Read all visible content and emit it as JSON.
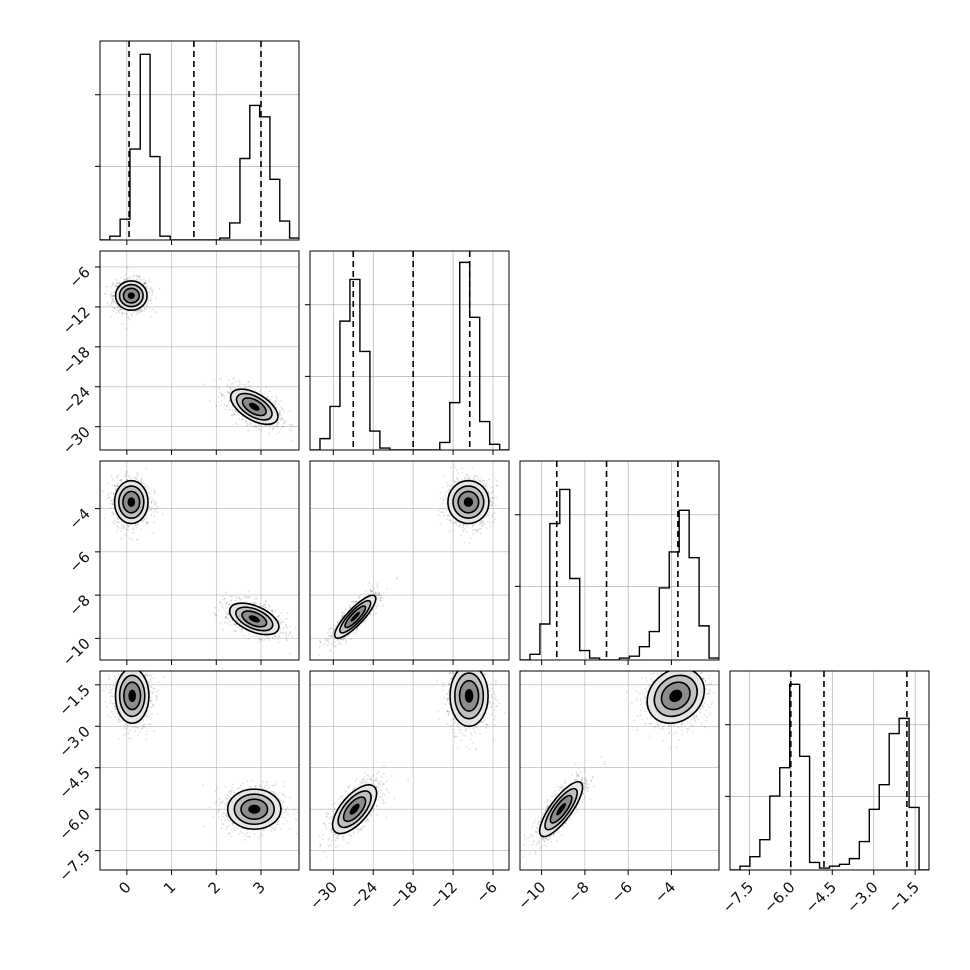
{
  "colors": {
    "background": "#ffffff",
    "axis": "#000000",
    "grid": "#b0b0b0",
    "hist": "#000000",
    "quantile_line": "#000000",
    "scatter_points": "#000000",
    "contour_fill_levels": [
      "#e6e6e6",
      "#bfbfbf",
      "#8c8c8c",
      "#000000"
    ]
  },
  "chart_data": {
    "type": "corner",
    "grid": true,
    "n_params": 4,
    "params": [
      {
        "name": "",
        "range": [
          -0.6,
          3.85
        ],
        "ticks": [
          0,
          1,
          2,
          3
        ],
        "tick_labels": [
          "0",
          "1",
          "2",
          "3"
        ],
        "quantiles": [
          0.05,
          1.5,
          3.0
        ]
      },
      {
        "name": "",
        "range": [
          -33.5,
          -3.6
        ],
        "ticks": [
          -30,
          -24,
          -18,
          -12,
          -6
        ],
        "tick_labels": [
          "−30",
          "−24",
          "−18",
          "−12",
          "−6"
        ],
        "quantiles": [
          -27.0,
          -18.0,
          -9.5
        ]
      },
      {
        "name": "",
        "range": [
          -11.0,
          -1.8
        ],
        "ticks": [
          -10,
          -8,
          -6,
          -4
        ],
        "tick_labels": [
          "−10",
          "−8",
          "−6",
          "−4"
        ],
        "quantiles": [
          -9.3,
          -7.0,
          -3.7
        ]
      },
      {
        "name": "",
        "range": [
          -8.2,
          -1.0
        ],
        "ticks": [
          -7.5,
          -6.0,
          -4.5,
          -3.0,
          -1.5
        ],
        "tick_labels": [
          "−7.5",
          "−6.0",
          "−4.5",
          "−3.0",
          "−1.5"
        ],
        "quantiles": [
          -6.0,
          -4.8,
          -1.8
        ]
      }
    ],
    "histograms": [
      {
        "param": 0,
        "bins": [
          -0.6,
          -0.38,
          -0.15,
          0.07,
          0.3,
          0.52,
          0.74,
          0.97,
          1.19,
          1.41,
          1.63,
          1.86,
          2.08,
          2.3,
          2.53,
          2.75,
          2.97,
          3.2,
          3.42,
          3.64,
          3.86
        ],
        "counts": [
          0,
          0.02,
          0.11,
          0.48,
          0.98,
          0.44,
          0.02,
          0,
          0,
          0,
          0,
          0,
          0.01,
          0.09,
          0.43,
          0.71,
          0.65,
          0.32,
          0.1,
          0.01
        ]
      },
      {
        "param": 1,
        "bins": [
          -33.5,
          -32.0,
          -30.5,
          -29.0,
          -27.5,
          -26.0,
          -24.5,
          -23.0,
          -21.5,
          -20.0,
          -18.5,
          -17.0,
          -15.5,
          -14.0,
          -12.5,
          -11.0,
          -9.5,
          -8.0,
          -6.5,
          -5.0,
          -3.5
        ],
        "counts": [
          0,
          0.06,
          0.23,
          0.68,
          0.9,
          0.52,
          0.1,
          0.01,
          0,
          0,
          0,
          0,
          0,
          0.04,
          0.25,
          0.99,
          0.7,
          0.15,
          0.03,
          0
        ]
      },
      {
        "param": 2,
        "bins": [
          -11.0,
          -10.54,
          -10.08,
          -9.62,
          -9.16,
          -8.7,
          -8.24,
          -7.78,
          -7.32,
          -6.86,
          -6.4,
          -5.94,
          -5.48,
          -5.02,
          -4.56,
          -4.1,
          -3.64,
          -3.18,
          -2.72,
          -2.26,
          -1.8
        ],
        "counts": [
          0,
          0.03,
          0.19,
          0.72,
          0.9,
          0.43,
          0.05,
          0.01,
          0,
          0,
          0.01,
          0.02,
          0.07,
          0.15,
          0.38,
          0.57,
          0.79,
          0.54,
          0.18,
          0.01
        ]
      },
      {
        "param": 3,
        "bins": [
          -8.2,
          -7.84,
          -7.48,
          -7.12,
          -6.76,
          -6.4,
          -6.04,
          -5.68,
          -5.32,
          -4.96,
          -4.6,
          -4.24,
          -3.88,
          -3.52,
          -3.16,
          -2.8,
          -2.44,
          -2.08,
          -1.72,
          -1.36,
          -1.0
        ],
        "counts": [
          0,
          0.02,
          0.07,
          0.16,
          0.39,
          0.54,
          0.98,
          0.6,
          0.04,
          0.01,
          0.02,
          0.03,
          0.06,
          0.15,
          0.32,
          0.45,
          0.72,
          0.8,
          0.33,
          0.0
        ]
      }
    ],
    "pairs": [
      {
        "x": 0,
        "y": 1,
        "clusters": [
          {
            "cx": 0.1,
            "cy": -10.3,
            "sx": 0.16,
            "sy": 1.0,
            "rho": 0.0
          },
          {
            "cx": 2.85,
            "cy": -27.0,
            "sx": 0.24,
            "sy": 1.2,
            "rho": -0.55
          }
        ]
      },
      {
        "x": 0,
        "y": 2,
        "clusters": [
          {
            "cx": 0.1,
            "cy": -3.7,
            "sx": 0.17,
            "sy": 0.45,
            "rho": 0.0
          },
          {
            "cx": 2.85,
            "cy": -9.1,
            "sx": 0.25,
            "sy": 0.33,
            "rho": -0.5
          }
        ]
      },
      {
        "x": 1,
        "y": 2,
        "clusters": [
          {
            "cx": -9.7,
            "cy": -3.7,
            "sx": 1.4,
            "sy": 0.45,
            "rho": 0.0
          },
          {
            "cx": -26.7,
            "cy": -9.0,
            "sx": 1.4,
            "sy": 0.45,
            "rho": 0.85
          }
        ]
      },
      {
        "x": 0,
        "y": 3,
        "clusters": [
          {
            "cx": 0.12,
            "cy": -1.9,
            "sx": 0.17,
            "sy": 0.45,
            "rho": 0.0
          },
          {
            "cx": 2.85,
            "cy": -6.0,
            "sx": 0.27,
            "sy": 0.33,
            "rho": 0.0
          }
        ]
      },
      {
        "x": 1,
        "y": 3,
        "clusters": [
          {
            "cx": -9.6,
            "cy": -1.9,
            "sx": 1.3,
            "sy": 0.5,
            "rho": 0.0
          },
          {
            "cx": -26.8,
            "cy": -6.0,
            "sx": 1.5,
            "sy": 0.4,
            "rho": 0.65
          }
        ]
      },
      {
        "x": 2,
        "y": 3,
        "clusters": [
          {
            "cx": -3.8,
            "cy": -1.9,
            "sx": 0.6,
            "sy": 0.45,
            "rho": 0.2
          },
          {
            "cx": -9.1,
            "cy": -6.0,
            "sx": 0.45,
            "sy": 0.45,
            "rho": 0.8
          }
        ]
      }
    ]
  }
}
